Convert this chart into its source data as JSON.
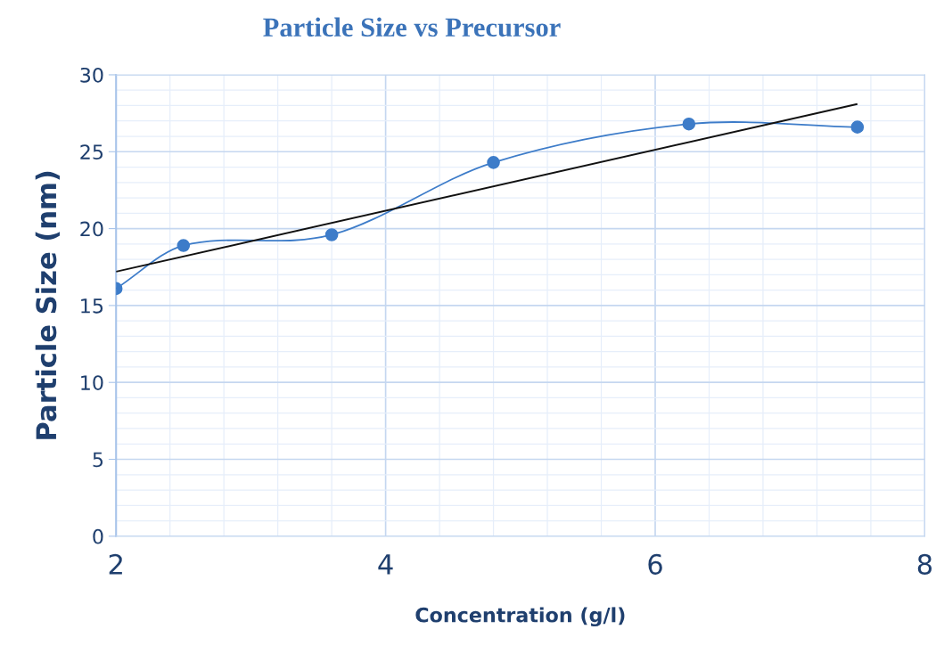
{
  "chart_data": {
    "type": "line",
    "title": "Particle Size vs Precursor",
    "xlabel": "Concentration (g/l)",
    "ylabel": "Particle Size (nm)",
    "xlim": [
      2,
      8
    ],
    "xticks": [
      2,
      4,
      6,
      8
    ],
    "ylim": [
      0,
      30
    ],
    "yticks": [
      0,
      5,
      10,
      15,
      20,
      25,
      30
    ],
    "grid": true,
    "legend": false,
    "series": [
      {
        "color": "#3d7cc9",
        "marker": "circle",
        "x": [
          2,
          2.5,
          3.6,
          4.8,
          6.25,
          7.5
        ],
        "values": [
          16.1,
          18.9,
          19.6,
          24.3,
          26.8,
          26.6
        ]
      },
      {
        "color": "#111111",
        "marker": "none",
        "x": [
          2,
          7.5
        ],
        "values": [
          17.2,
          28.1
        ]
      }
    ]
  }
}
